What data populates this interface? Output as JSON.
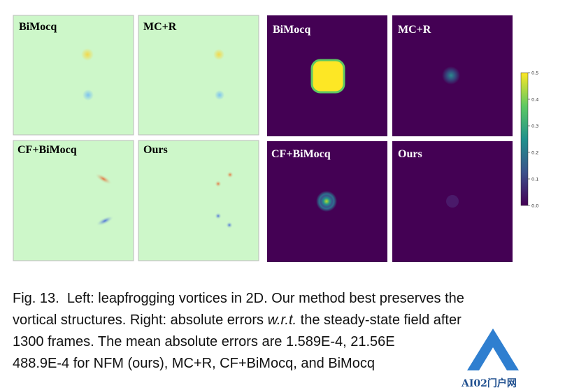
{
  "figure": {
    "left_panels": [
      "BiMocq",
      "MC+R",
      "CF+BiMocq",
      "Ours"
    ],
    "right_panels": [
      "BiMocq",
      "MC+R",
      "CF+BiMocq",
      "Ours"
    ],
    "colorbar": {
      "lim": [
        0,
        0.5
      ],
      "ticks": [
        {
          "value": 0,
          "label": "0.0"
        },
        0.1,
        0.2,
        0.3,
        0.4,
        0.5
      ]
    }
  },
  "caption": {
    "lines": [
      [
        "Fig. 13.  Left: leapfrogging vortices in 2D. Our method best preserves the"
      ],
      [
        "vortical structures. Right: absolute errors ",
        "w.r.t.",
        " the steady-state field after"
      ],
      [
        "1300 frames. The mean absolute errors are 1.589E-4, 21.56E"
      ],
      [
        "488.9E-4 for NFM (ours), MC+R, CF+BiMocq, and BiMocq"
      ]
    ]
  },
  "watermark": "AI02门户网"
}
